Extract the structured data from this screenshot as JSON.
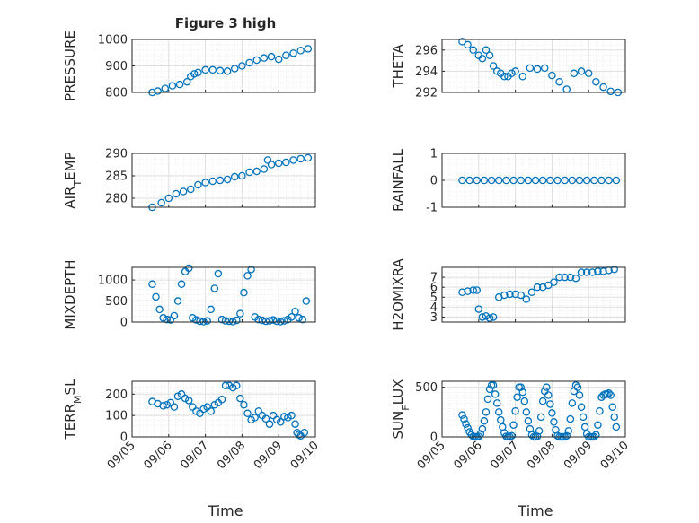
{
  "figure": {
    "title": "Figure 3 high",
    "xlabel": "Time"
  },
  "chart_data": [
    {
      "type": "scatter",
      "ylabel": "PRESSURE",
      "ylim": [
        800,
        1000
      ],
      "yticks": [
        "800",
        "900",
        "1000"
      ],
      "xlim": [
        0,
        5
      ],
      "grid": true,
      "x": [
        0.55,
        0.7,
        0.9,
        1.1,
        1.3,
        1.5,
        1.6,
        1.7,
        1.8,
        2.0,
        2.2,
        2.4,
        2.6,
        2.8,
        3.0,
        3.2,
        3.4,
        3.6,
        3.8,
        4.0,
        4.2,
        4.4,
        4.6,
        4.8
      ],
      "y": [
        800,
        805,
        815,
        825,
        830,
        840,
        860,
        870,
        875,
        885,
        885,
        882,
        880,
        890,
        900,
        912,
        922,
        930,
        935,
        925,
        940,
        948,
        958,
        965
      ]
    },
    {
      "type": "scatter",
      "ylabel": "THETA",
      "ylim": [
        292,
        297
      ],
      "yticks": [
        "292",
        "294",
        "296"
      ],
      "xlim": [
        0,
        5
      ],
      "grid": true,
      "x": [
        0.55,
        0.7,
        0.85,
        1.0,
        1.1,
        1.2,
        1.3,
        1.4,
        1.5,
        1.6,
        1.7,
        1.8,
        1.9,
        2.0,
        2.2,
        2.4,
        2.6,
        2.8,
        3.0,
        3.2,
        3.4,
        3.6,
        3.8,
        4.0,
        4.2,
        4.4,
        4.6,
        4.8
      ],
      "y": [
        296.8,
        296.5,
        296.0,
        295.5,
        295.2,
        296.0,
        295.5,
        294.5,
        294.0,
        293.8,
        293.5,
        293.5,
        293.8,
        294.0,
        293.5,
        294.3,
        294.2,
        294.3,
        293.6,
        293.0,
        292.3,
        293.8,
        294.0,
        293.8,
        293.0,
        292.5,
        292.1,
        292.0
      ]
    },
    {
      "type": "scatter",
      "ylabel": "AIR_TEMP",
      "ylim": [
        278,
        290
      ],
      "yticks": [
        "280",
        "285",
        "290"
      ],
      "xlim": [
        0,
        5
      ],
      "grid": true,
      "x": [
        0.55,
        0.8,
        1.0,
        1.2,
        1.4,
        1.6,
        1.8,
        2.0,
        2.2,
        2.4,
        2.6,
        2.8,
        3.0,
        3.2,
        3.4,
        3.6,
        3.7,
        3.8,
        4.0,
        4.2,
        4.4,
        4.6,
        4.8
      ],
      "y": [
        278,
        279,
        280,
        281,
        281.5,
        282,
        283,
        283.5,
        283.8,
        284,
        284.2,
        284.8,
        285,
        285.8,
        286,
        286.5,
        288.5,
        287.5,
        287.8,
        288,
        288.5,
        288.8,
        289
      ]
    },
    {
      "type": "scatter",
      "ylabel": "RAINFALL",
      "ylim": [
        -1,
        1
      ],
      "yticks": [
        "-1",
        "0",
        "1"
      ],
      "xlim": [
        0,
        5
      ],
      "grid": true,
      "x": [
        0.55,
        0.75,
        0.95,
        1.15,
        1.35,
        1.55,
        1.75,
        1.95,
        2.15,
        2.35,
        2.55,
        2.75,
        2.95,
        3.15,
        3.35,
        3.55,
        3.75,
        3.95,
        4.15,
        4.35,
        4.55,
        4.75
      ],
      "y": [
        0,
        0,
        0,
        0,
        0,
        0,
        0,
        0,
        0,
        0,
        0,
        0,
        0,
        0,
        0,
        0,
        0,
        0,
        0,
        0,
        0,
        0
      ]
    },
    {
      "type": "scatter",
      "ylabel": "MIXDEPTH",
      "ylim": [
        0,
        1300
      ],
      "yticks": [
        "0",
        "500",
        "1000"
      ],
      "xlim": [
        0,
        5
      ],
      "grid": true,
      "x": [
        0.55,
        0.65,
        0.75,
        0.85,
        0.95,
        1.05,
        1.15,
        1.25,
        1.35,
        1.45,
        1.55,
        1.65,
        1.75,
        1.85,
        1.95,
        2.05,
        2.15,
        2.25,
        2.35,
        2.45,
        2.55,
        2.65,
        2.75,
        2.85,
        2.95,
        3.05,
        3.15,
        3.25,
        3.35,
        3.45,
        3.55,
        3.65,
        3.75,
        3.85,
        3.95,
        4.05,
        4.15,
        4.25,
        4.35,
        4.45,
        4.55,
        4.65,
        4.75
      ],
      "y": [
        900,
        600,
        300,
        100,
        60,
        50,
        150,
        500,
        900,
        1200,
        1280,
        100,
        50,
        20,
        10,
        30,
        300,
        800,
        1150,
        60,
        30,
        20,
        10,
        40,
        200,
        700,
        1100,
        1250,
        120,
        60,
        40,
        20,
        30,
        50,
        20,
        10,
        30,
        60,
        120,
        250,
        100,
        60,
        500
      ]
    },
    {
      "type": "scatter",
      "ylabel": "H2OMIXRA",
      "ylim": [
        2.5,
        8
      ],
      "yticks": [
        "3",
        "4",
        "5",
        "6",
        "7"
      ],
      "xlim": [
        0,
        5
      ],
      "grid": true,
      "x": [
        0.55,
        0.7,
        0.85,
        0.95,
        1.0,
        1.1,
        1.2,
        1.3,
        1.4,
        1.55,
        1.7,
        1.85,
        2.0,
        2.15,
        2.3,
        2.45,
        2.6,
        2.75,
        2.9,
        3.05,
        3.2,
        3.35,
        3.5,
        3.65,
        3.8,
        3.95,
        4.1,
        4.25,
        4.4,
        4.55,
        4.7
      ],
      "y": [
        5.5,
        5.6,
        5.7,
        5.7,
        3.8,
        3.0,
        3.1,
        2.9,
        3.0,
        5.0,
        5.2,
        5.3,
        5.3,
        5.2,
        4.8,
        5.5,
        6.0,
        6.0,
        6.2,
        6.5,
        7.0,
        7.0,
        7.0,
        6.9,
        7.5,
        7.5,
        7.5,
        7.6,
        7.6,
        7.7,
        7.8
      ]
    },
    {
      "type": "scatter",
      "ylabel": "TERR_MSL",
      "ylim": [
        0,
        260
      ],
      "yticks": [
        "0",
        "100",
        "200"
      ],
      "xlim": [
        0,
        5
      ],
      "grid": true,
      "x": [
        0.55,
        0.7,
        0.85,
        0.95,
        1.05,
        1.15,
        1.25,
        1.35,
        1.45,
        1.55,
        1.65,
        1.75,
        1.85,
        1.95,
        2.05,
        2.15,
        2.25,
        2.35,
        2.45,
        2.55,
        2.65,
        2.75,
        2.85,
        2.95,
        3.05,
        3.15,
        3.25,
        3.35,
        3.45,
        3.55,
        3.65,
        3.75,
        3.85,
        3.95,
        4.05,
        4.15,
        4.25,
        4.35,
        4.45,
        4.5,
        4.55,
        4.6,
        4.7
      ],
      "y": [
        165,
        155,
        145,
        150,
        160,
        140,
        190,
        200,
        180,
        170,
        140,
        120,
        110,
        130,
        140,
        120,
        150,
        160,
        175,
        240,
        240,
        230,
        240,
        180,
        150,
        110,
        80,
        90,
        120,
        100,
        85,
        60,
        100,
        80,
        70,
        95,
        90,
        100,
        60,
        20,
        10,
        5,
        20
      ]
    },
    {
      "type": "scatter",
      "ylabel": "SUN_FLUX",
      "ylim": [
        0,
        560
      ],
      "yticks": [
        "0",
        "500"
      ],
      "xlim": [
        0,
        5
      ],
      "grid": true,
      "x": [
        0.55,
        0.6,
        0.65,
        0.7,
        0.75,
        0.8,
        0.85,
        0.9,
        0.95,
        1.0,
        1.05,
        1.1,
        1.15,
        1.2,
        1.25,
        1.3,
        1.35,
        1.4,
        1.45,
        1.5,
        1.55,
        1.6,
        1.65,
        1.7,
        1.75,
        1.8,
        1.85,
        1.9,
        1.95,
        2.0,
        2.05,
        2.1,
        2.15,
        2.2,
        2.25,
        2.3,
        2.35,
        2.4,
        2.45,
        2.5,
        2.55,
        2.6,
        2.65,
        2.7,
        2.75,
        2.8,
        2.85,
        2.9,
        2.95,
        3.0,
        3.05,
        3.1,
        3.15,
        3.2,
        3.25,
        3.3,
        3.35,
        3.4,
        3.45,
        3.5,
        3.55,
        3.6,
        3.65,
        3.7,
        3.75,
        3.8,
        3.85,
        3.9,
        3.95,
        4.0,
        4.05,
        4.1,
        4.15,
        4.2,
        4.25,
        4.3,
        4.35,
        4.4,
        4.45,
        4.5,
        4.55,
        4.6,
        4.65,
        4.7,
        4.75
      ],
      "y": [
        220,
        180,
        130,
        90,
        50,
        20,
        5,
        0,
        0,
        5,
        30,
        80,
        160,
        250,
        380,
        480,
        520,
        520,
        430,
        340,
        250,
        170,
        100,
        40,
        5,
        0,
        0,
        10,
        120,
        260,
        400,
        500,
        500,
        450,
        360,
        250,
        160,
        80,
        20,
        0,
        0,
        5,
        60,
        200,
        360,
        460,
        500,
        420,
        330,
        240,
        150,
        70,
        10,
        0,
        0,
        0,
        0,
        10,
        60,
        180,
        340,
        460,
        520,
        500,
        420,
        300,
        200,
        100,
        30,
        0,
        0,
        0,
        0,
        20,
        120,
        260,
        400,
        420,
        430,
        430,
        440,
        420,
        300,
        200,
        100
      ]
    }
  ],
  "xticks": [
    "09/05",
    "09/06",
    "09/07",
    "09/08",
    "09/09",
    "09/10"
  ],
  "colors": {
    "marker": "#0072BD",
    "grid": "#DFDFDF",
    "axis": "#262626"
  }
}
